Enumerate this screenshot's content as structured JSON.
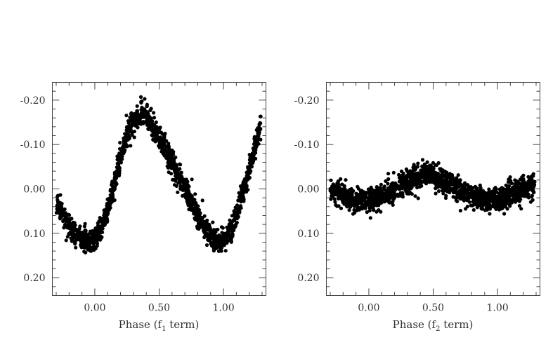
{
  "figure": {
    "panels": [
      {
        "id": "f1",
        "xlabel_prefix": "Phase (f",
        "xlabel_sub": "1",
        "xlabel_suffix": " term)"
      },
      {
        "id": "f2",
        "xlabel_prefix": "Phase (f",
        "xlabel_sub": "2",
        "xlabel_suffix": " term)"
      }
    ]
  },
  "chart_data": [
    {
      "type": "scatter",
      "title": "",
      "xlabel": "Phase (f1 term)",
      "ylabel": "",
      "xlim": [
        -0.33,
        1.33
      ],
      "ylim": [
        0.24,
        -0.24
      ],
      "y_inverted": true,
      "xticks": [
        0.0,
        0.5,
        1.0
      ],
      "xtick_labels": [
        "0.00",
        "0.50",
        "1.00"
      ],
      "xtick_minor_step": 0.1,
      "yticks": [
        -0.2,
        -0.1,
        0.0,
        0.1,
        0.2
      ],
      "ytick_labels": [
        "-0.20",
        "-0.10",
        "0.00",
        "0.10",
        "0.20"
      ],
      "ytick_minor_step": 0.02,
      "grid": false,
      "marker_color": "#000000",
      "series": [
        {
          "x": [
            -0.3,
            -0.25,
            -0.2,
            -0.15,
            -0.1,
            -0.05,
            0.0,
            0.05,
            0.1,
            0.15,
            0.2,
            0.25,
            0.3,
            0.35,
            0.38,
            0.42,
            0.45,
            0.5,
            0.55,
            0.6,
            0.65,
            0.7,
            0.75,
            0.8,
            0.85,
            0.9,
            0.95,
            1.0,
            1.05,
            1.1,
            1.15,
            1.2,
            1.25,
            1.29
          ],
          "y": [
            0.03,
            0.06,
            0.08,
            0.1,
            0.115,
            0.12,
            0.115,
            0.09,
            0.05,
            -0.01,
            -0.07,
            -0.12,
            -0.15,
            -0.165,
            -0.17,
            -0.16,
            -0.14,
            -0.115,
            -0.09,
            -0.06,
            -0.03,
            0.0,
            0.03,
            0.06,
            0.085,
            0.105,
            0.12,
            0.115,
            0.095,
            0.06,
            0.01,
            -0.04,
            -0.1,
            -0.14
          ],
          "scatter_sd": 0.013
        }
      ]
    },
    {
      "type": "scatter",
      "title": "",
      "xlabel": "Phase (f2 term)",
      "ylabel": "",
      "xlim": [
        -0.33,
        1.33
      ],
      "ylim": [
        0.24,
        -0.24
      ],
      "y_inverted": true,
      "xticks": [
        0.0,
        0.5,
        1.0
      ],
      "xtick_labels": [
        "0.00",
        "0.50",
        "1.00"
      ],
      "xtick_minor_step": 0.1,
      "yticks": [
        -0.2,
        -0.1,
        0.0,
        0.1,
        0.2
      ],
      "ytick_labels": [
        "-0.20",
        "-0.10",
        "0.00",
        "0.10",
        "0.20"
      ],
      "ytick_minor_step": 0.02,
      "grid": false,
      "marker_color": "#000000",
      "series": [
        {
          "x": [
            -0.3,
            -0.2,
            -0.1,
            0.0,
            0.1,
            0.2,
            0.3,
            0.4,
            0.45,
            0.5,
            0.6,
            0.7,
            0.8,
            0.9,
            1.0,
            1.1,
            1.2,
            1.29
          ],
          "y": [
            0.0,
            0.015,
            0.025,
            0.025,
            0.015,
            0.0,
            -0.015,
            -0.03,
            -0.033,
            -0.03,
            -0.015,
            0.0,
            0.015,
            0.025,
            0.025,
            0.015,
            0.0,
            -0.01
          ],
          "scatter_sd": 0.013
        }
      ]
    }
  ]
}
